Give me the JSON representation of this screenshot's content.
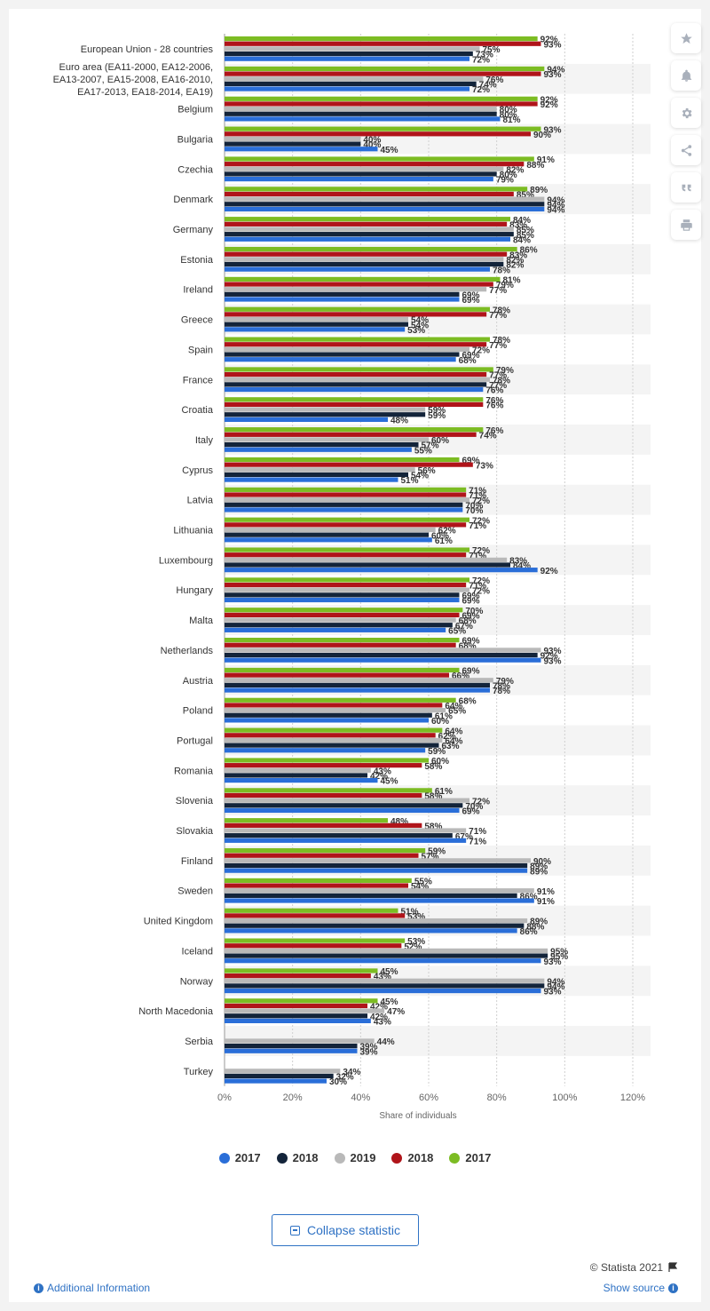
{
  "toolbar": {
    "icons": [
      "star-icon",
      "bell-icon",
      "gear-icon",
      "share-icon",
      "quote-icon",
      "print-icon"
    ]
  },
  "legend": [
    {
      "label": "2017",
      "color": "#2a6ed8"
    },
    {
      "label": "2018",
      "color": "#13243a"
    },
    {
      "label": "2019",
      "color": "#b9b9b9"
    },
    {
      "label": "2018",
      "color": "#b0141a"
    },
    {
      "label": "2017",
      "color": "#7cbc23"
    }
  ],
  "collapse_label": "Collapse statistic",
  "credit": "© Statista 2021",
  "additional_info": "Additional Information",
  "show_source": "Show source",
  "chart_data": {
    "type": "bar",
    "orientation": "horizontal",
    "xlabel": "Share of individuals",
    "xlim": [
      0,
      120
    ],
    "xticks": [
      "0%",
      "20%",
      "40%",
      "60%",
      "80%",
      "100%",
      "120%"
    ],
    "categories": [
      [
        "European Union - 28 countries"
      ],
      [
        "Euro area (EA11-2000, EA12-2006,",
        "EA13-2007, EA15-2008, EA16-2010,",
        "EA17-2013, EA18-2014, EA19)"
      ],
      [
        "Belgium"
      ],
      [
        "Bulgaria"
      ],
      [
        "Czechia"
      ],
      [
        "Denmark"
      ],
      [
        "Germany"
      ],
      [
        "Estonia"
      ],
      [
        "Ireland"
      ],
      [
        "Greece"
      ],
      [
        "Spain"
      ],
      [
        "France"
      ],
      [
        "Croatia"
      ],
      [
        "Italy"
      ],
      [
        "Cyprus"
      ],
      [
        "Latvia"
      ],
      [
        "Lithuania"
      ],
      [
        "Luxembourg"
      ],
      [
        "Hungary"
      ],
      [
        "Malta"
      ],
      [
        "Netherlands"
      ],
      [
        "Austria"
      ],
      [
        "Poland"
      ],
      [
        "Portugal"
      ],
      [
        "Romania"
      ],
      [
        "Slovenia"
      ],
      [
        "Slovakia"
      ],
      [
        "Finland"
      ],
      [
        "Sweden"
      ],
      [
        "United Kingdom"
      ],
      [
        "Iceland"
      ],
      [
        "Norway"
      ],
      [
        "North Macedonia"
      ],
      [
        "Serbia"
      ],
      [
        "Turkey"
      ]
    ],
    "series_order_in_group": [
      "2017 (green)",
      "2018 (red)",
      "2019 (gray)",
      "2018 (navy)",
      "2017 (blue)"
    ],
    "series": [
      {
        "name": "2017",
        "color": "#7cbc23",
        "values": [
          92,
          94,
          92,
          93,
          91,
          89,
          84,
          86,
          81,
          78,
          78,
          79,
          76,
          76,
          69,
          71,
          72,
          72,
          72,
          70,
          69,
          69,
          68,
          64,
          60,
          61,
          48,
          59,
          55,
          51,
          53,
          45,
          45,
          null,
          null
        ]
      },
      {
        "name": "2018",
        "color": "#b0141a",
        "values": [
          93,
          93,
          92,
          90,
          88,
          85,
          83,
          83,
          79,
          77,
          77,
          77,
          76,
          74,
          73,
          71,
          71,
          71,
          71,
          69,
          68,
          66,
          64,
          62,
          58,
          58,
          58,
          57,
          54,
          53,
          52,
          43,
          42,
          null,
          null
        ]
      },
      {
        "name": "2019",
        "color": "#b9b9b9",
        "values": [
          75,
          76,
          80,
          40,
          82,
          94,
          85,
          82,
          77,
          54,
          72,
          78,
          59,
          60,
          56,
          72,
          62,
          83,
          72,
          68,
          93,
          79,
          65,
          64,
          43,
          72,
          71,
          90,
          91,
          89,
          95,
          94,
          47,
          44,
          34
        ]
      },
      {
        "name": "2018",
        "color": "#13243a",
        "values": [
          73,
          74,
          80,
          40,
          80,
          94,
          85,
          82,
          69,
          54,
          69,
          77,
          59,
          57,
          54,
          70,
          60,
          84,
          69,
          67,
          92,
          78,
          61,
          63,
          42,
          70,
          67,
          89,
          86,
          88,
          95,
          94,
          42,
          39,
          32
        ]
      },
      {
        "name": "2017",
        "color": "#2a6ed8",
        "values": [
          72,
          72,
          81,
          45,
          79,
          94,
          84,
          78,
          69,
          53,
          68,
          76,
          48,
          55,
          51,
          70,
          61,
          92,
          69,
          65,
          93,
          78,
          60,
          59,
          45,
          69,
          71,
          89,
          91,
          86,
          93,
          93,
          43,
          39,
          30
        ]
      }
    ]
  }
}
